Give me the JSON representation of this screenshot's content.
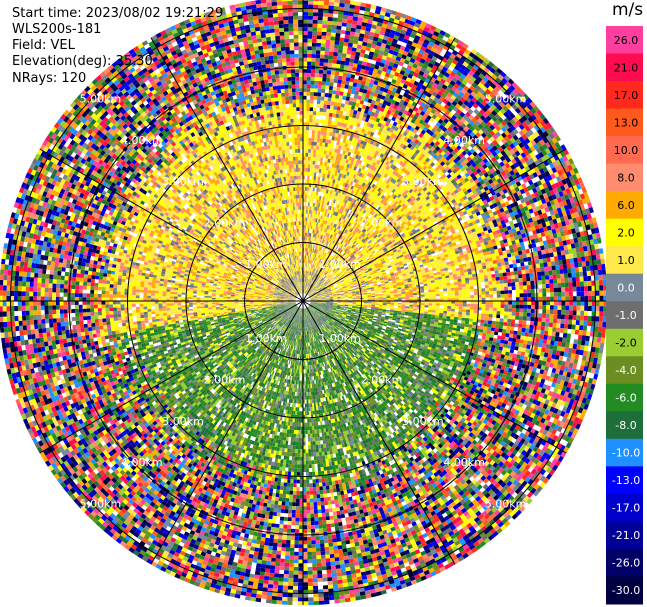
{
  "info": {
    "start_time": "Start time: 2023/08/02 19:21:29",
    "site": "WLS200s-181",
    "field": "Field: VEL",
    "elevation": "Elevation(deg): 35.30",
    "nrays": "NRays: 120"
  },
  "colorbar": {
    "unit": "m/s",
    "bins": [
      {
        "label": "26.0",
        "color": "#ff3fa0"
      },
      {
        "label": "21.0",
        "color": "#ff0c50"
      },
      {
        "label": "17.0",
        "color": "#ff2a1e"
      },
      {
        "label": "13.0",
        "color": "#ff5a1e"
      },
      {
        "label": "10.0",
        "color": "#ff6a50"
      },
      {
        "label": "8.0",
        "color": "#ff8c6e"
      },
      {
        "label": "6.0",
        "color": "#ffaa00"
      },
      {
        "label": "2.0",
        "color": "#ffff00"
      },
      {
        "label": "1.0",
        "color": "#ffe84a"
      },
      {
        "label": "0.0",
        "color": "#778899"
      },
      {
        "label": "-1.0",
        "color": "#6e6e6e"
      },
      {
        "label": "-2.0",
        "color": "#9acd32"
      },
      {
        "label": "-4.0",
        "color": "#6b8e23"
      },
      {
        "label": "-6.0",
        "color": "#228b22"
      },
      {
        "label": "-8.0",
        "color": "#1e6e3a"
      },
      {
        "label": "-10.0",
        "color": "#1e90ff"
      },
      {
        "label": "-13.0",
        "color": "#0000ff"
      },
      {
        "label": "-17.0",
        "color": "#0000cd"
      },
      {
        "label": "-21.0",
        "color": "#000099"
      },
      {
        "label": "-26.0",
        "color": "#000066"
      },
      {
        "label": "-30.0",
        "color": "#000040"
      }
    ]
  },
  "chart_data": {
    "type": "heatmap",
    "projection": "polar (plan position indicator)",
    "field": "VEL",
    "elevation_deg": 35.3,
    "n_rays": 120,
    "range_rings_km": [
      1.0,
      2.0,
      3.0,
      4.0,
      5.0
    ],
    "ring_labels": [
      "1.00km",
      "2.00km",
      "3.00km",
      "4.00km",
      "5.00km"
    ],
    "max_range_km": 5.0,
    "note_pattern": "near range: yellow/orange (positive) in north and west sectors, green (negative) in south-east; far range: noisy multicolor"
  }
}
